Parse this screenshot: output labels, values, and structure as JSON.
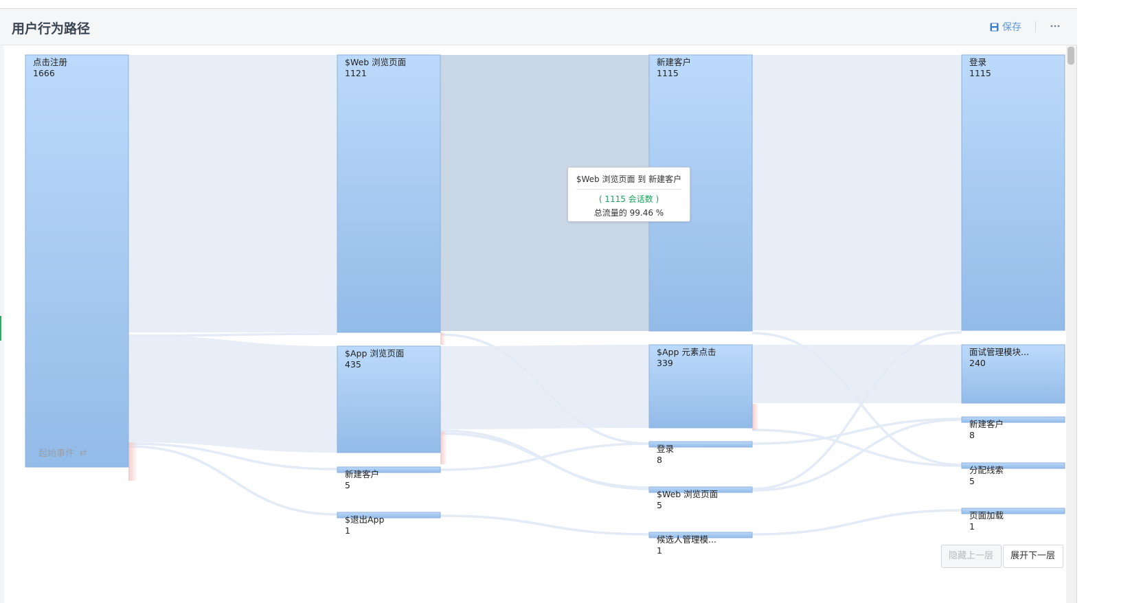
{
  "header": {
    "title": "用户行为路径",
    "save_label": "保存",
    "more_icon": "more-icon"
  },
  "start_label": "起始事件",
  "buttons": {
    "hide_prev": "隐藏上一层",
    "expand_next": "展开下一层"
  },
  "tooltip": {
    "title": "$Web 浏览页面 到 新建客户",
    "sessions": "( 1115 会话数 )",
    "ratio": "总流量的 99.46 %"
  },
  "colors": {
    "node_top": "#bcdafb",
    "node_bottom": "#93bbe8",
    "link": "#e7eef8",
    "link_highlight": "#c8d6e6",
    "accent": "#5b9bd8"
  },
  "columns": [
    {
      "nodes": [
        {
          "id": "c0n0",
          "name": "点击注册",
          "value": "1666"
        }
      ]
    },
    {
      "nodes": [
        {
          "id": "c1n0",
          "name": "$Web 浏览页面",
          "value": "1121"
        },
        {
          "id": "c1n1",
          "name": "$App 浏览页面",
          "value": "435"
        },
        {
          "id": "c1n2",
          "name": "新建客户",
          "value": "5"
        },
        {
          "id": "c1n3",
          "name": "$退出App",
          "value": "1"
        }
      ]
    },
    {
      "nodes": [
        {
          "id": "c2n0",
          "name": "新建客户",
          "value": "1115"
        },
        {
          "id": "c2n1",
          "name": "$App 元素点击",
          "value": "339"
        },
        {
          "id": "c2n2",
          "name": "登录",
          "value": "8"
        },
        {
          "id": "c2n3",
          "name": "$Web 浏览页面",
          "value": "5"
        },
        {
          "id": "c2n4",
          "name": "候选人管理模...",
          "value": "1"
        }
      ]
    },
    {
      "nodes": [
        {
          "id": "c3n0",
          "name": "登录",
          "value": "1115"
        },
        {
          "id": "c3n1",
          "name": "面试管理模块...",
          "value": "240"
        },
        {
          "id": "c3n2",
          "name": "新建客户",
          "value": "8"
        },
        {
          "id": "c3n3",
          "name": "分配线索",
          "value": "5"
        },
        {
          "id": "c3n4",
          "name": "页面加载",
          "value": "1"
        }
      ]
    }
  ]
}
